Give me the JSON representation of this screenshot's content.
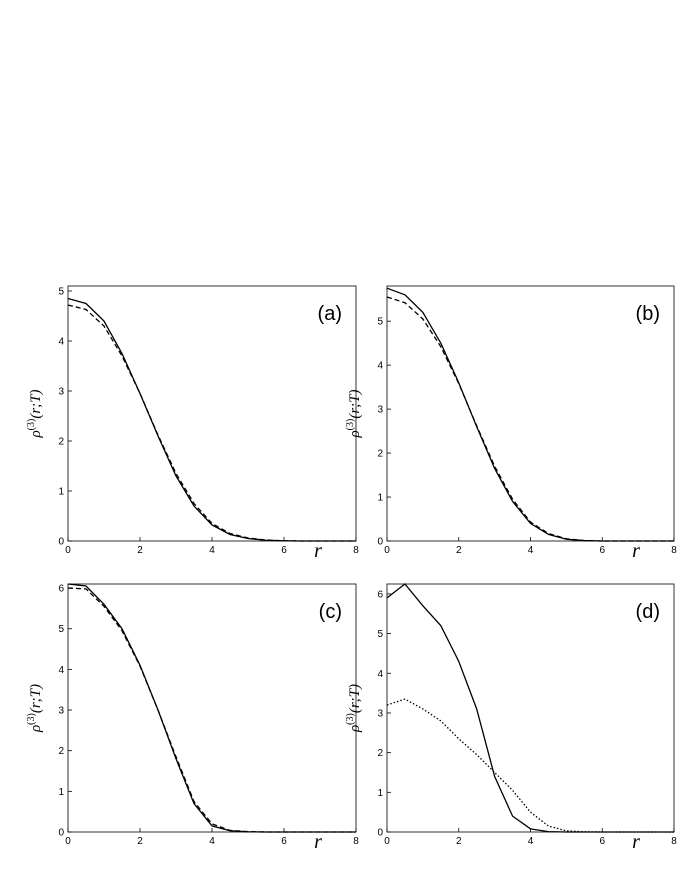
{
  "chart_data": [
    {
      "type": "line",
      "panel_label": "(a)",
      "x_label": "r",
      "y_label": [
        "ρ",
        "(3)",
        "(r;T)"
      ],
      "x": [
        0,
        0.5,
        1,
        1.5,
        2,
        2.5,
        3,
        3.5,
        4,
        4.5,
        5,
        5.5,
        6,
        6.5,
        7,
        7.5,
        8
      ],
      "xlim": [
        0,
        8
      ],
      "xticks": [
        0,
        2,
        4,
        6,
        8
      ],
      "ylim": [
        0,
        5.1
      ],
      "yticks": [
        0,
        1,
        2,
        3,
        4,
        5
      ],
      "series": [
        {
          "color": "#000000",
          "dash": "solid",
          "values": [
            4.85,
            4.75,
            4.4,
            3.75,
            2.95,
            2.1,
            1.3,
            0.7,
            0.32,
            0.13,
            0.05,
            0.015,
            0.005,
            0,
            0,
            0,
            0
          ]
        },
        {
          "color": "#000000",
          "dash": "dashed",
          "values": [
            4.72,
            4.63,
            4.3,
            3.7,
            2.95,
            2.12,
            1.35,
            0.75,
            0.35,
            0.15,
            0.06,
            0.02,
            0.005,
            0,
            0,
            0,
            0
          ]
        }
      ]
    },
    {
      "type": "line",
      "panel_label": "(b)",
      "x_label": "r",
      "y_label": [
        "ρ",
        "(3)",
        "(r;T)"
      ],
      "x": [
        0,
        0.5,
        1,
        1.5,
        2,
        2.5,
        3,
        3.5,
        4,
        4.5,
        5,
        5.5,
        6,
        6.5,
        7,
        7.5,
        8
      ],
      "xlim": [
        0,
        8
      ],
      "xticks": [
        0,
        2,
        4,
        6,
        8
      ],
      "ylim": [
        0,
        5.8
      ],
      "yticks": [
        0,
        1,
        2,
        3,
        4,
        5
      ],
      "series": [
        {
          "color": "#000000",
          "dash": "solid",
          "values": [
            5.75,
            5.6,
            5.2,
            4.5,
            3.6,
            2.6,
            1.65,
            0.9,
            0.4,
            0.15,
            0.04,
            0.01,
            0,
            0,
            0,
            0,
            0
          ]
        },
        {
          "color": "#000000",
          "dash": "dashed",
          "values": [
            5.55,
            5.42,
            5.05,
            4.42,
            3.58,
            2.62,
            1.7,
            0.95,
            0.43,
            0.17,
            0.05,
            0.01,
            0,
            0,
            0,
            0,
            0
          ]
        }
      ]
    },
    {
      "type": "line",
      "panel_label": "(c)",
      "x_label": "r",
      "y_label": [
        "ρ",
        "(3)",
        "(r;T)"
      ],
      "x": [
        0,
        0.5,
        1,
        1.5,
        2,
        2.5,
        3,
        3.5,
        4,
        4.5,
        5,
        5.5,
        6,
        6.5,
        7,
        7.5,
        8
      ],
      "xlim": [
        0,
        8
      ],
      "xticks": [
        0,
        2,
        4,
        6,
        8
      ],
      "ylim": [
        0,
        6.1
      ],
      "yticks": [
        0,
        1,
        2,
        3,
        4,
        5,
        6
      ],
      "series": [
        {
          "color": "#000000",
          "dash": "solid",
          "values": [
            6.1,
            6.05,
            5.6,
            5.0,
            4.1,
            3.0,
            1.8,
            0.7,
            0.15,
            0.03,
            0.005,
            0,
            0,
            0,
            0,
            0,
            0
          ]
        },
        {
          "color": "#000000",
          "dash": "dashed",
          "values": [
            6.0,
            5.98,
            5.55,
            4.95,
            4.08,
            3.0,
            1.85,
            0.75,
            0.2,
            0.04,
            0.01,
            0,
            0,
            0,
            0,
            0,
            0
          ]
        }
      ]
    },
    {
      "type": "line",
      "panel_label": "(d)",
      "x_label": "r",
      "y_label": [
        "ρ",
        "(3)",
        "(r;T)"
      ],
      "x": [
        0,
        0.5,
        1,
        1.5,
        2,
        2.5,
        3,
        3.5,
        4,
        4.5,
        5,
        5.5,
        6,
        6.5,
        7,
        7.5,
        8
      ],
      "xlim": [
        0,
        8
      ],
      "xticks": [
        0,
        2,
        4,
        6,
        8
      ],
      "ylim": [
        0,
        6.25
      ],
      "yticks": [
        0,
        1,
        2,
        3,
        4,
        5,
        6
      ],
      "series": [
        {
          "color": "#000000",
          "dash": "solid",
          "values": [
            5.9,
            6.25,
            5.7,
            5.2,
            4.3,
            3.1,
            1.4,
            0.4,
            0.08,
            0.01,
            0,
            0,
            0,
            0,
            0,
            0,
            0
          ]
        },
        {
          "color": "#000000",
          "dash": "dotted",
          "values": [
            3.2,
            3.35,
            3.1,
            2.8,
            2.35,
            1.95,
            1.5,
            1.05,
            0.5,
            0.15,
            0.03,
            0.005,
            0,
            0,
            0,
            0,
            0
          ]
        }
      ]
    }
  ]
}
